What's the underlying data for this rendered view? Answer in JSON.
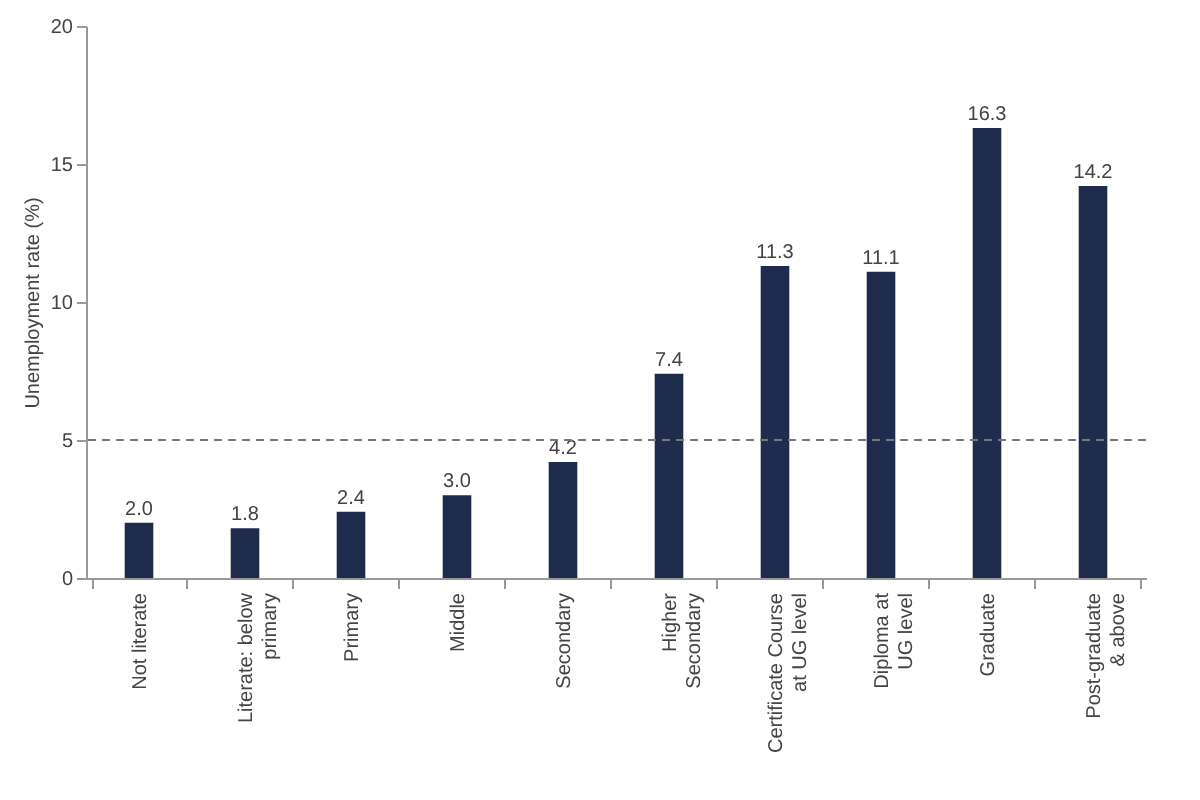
{
  "chart_data": {
    "type": "bar",
    "ylabel": "Unemployment rate (%)",
    "categories": [
      "Not literate",
      "Literate: below\nprimary",
      "Primary",
      "Middle",
      "Secondary",
      "Higher\nSecondary",
      "Certificate Course\nat UG level",
      "Diploma at\nUG level",
      "Graduate",
      "Post-graduate\n& above"
    ],
    "values": [
      2.0,
      1.8,
      2.4,
      3.0,
      4.2,
      7.4,
      11.3,
      11.1,
      16.3,
      14.2
    ],
    "value_labels": [
      "2.0",
      "1.8",
      "2.4",
      "3.0",
      "4.2",
      "7.4",
      "11.3",
      "11.1",
      "16.3",
      "14.2"
    ],
    "color": "#1f2c4d",
    "ylim": [
      0,
      20
    ],
    "yticks": [
      0,
      5,
      10,
      15,
      20
    ],
    "grid": false,
    "ref_lines": [
      {
        "axis": "y",
        "value": 5,
        "line_style": "dashed",
        "color": "#777777"
      }
    ]
  }
}
